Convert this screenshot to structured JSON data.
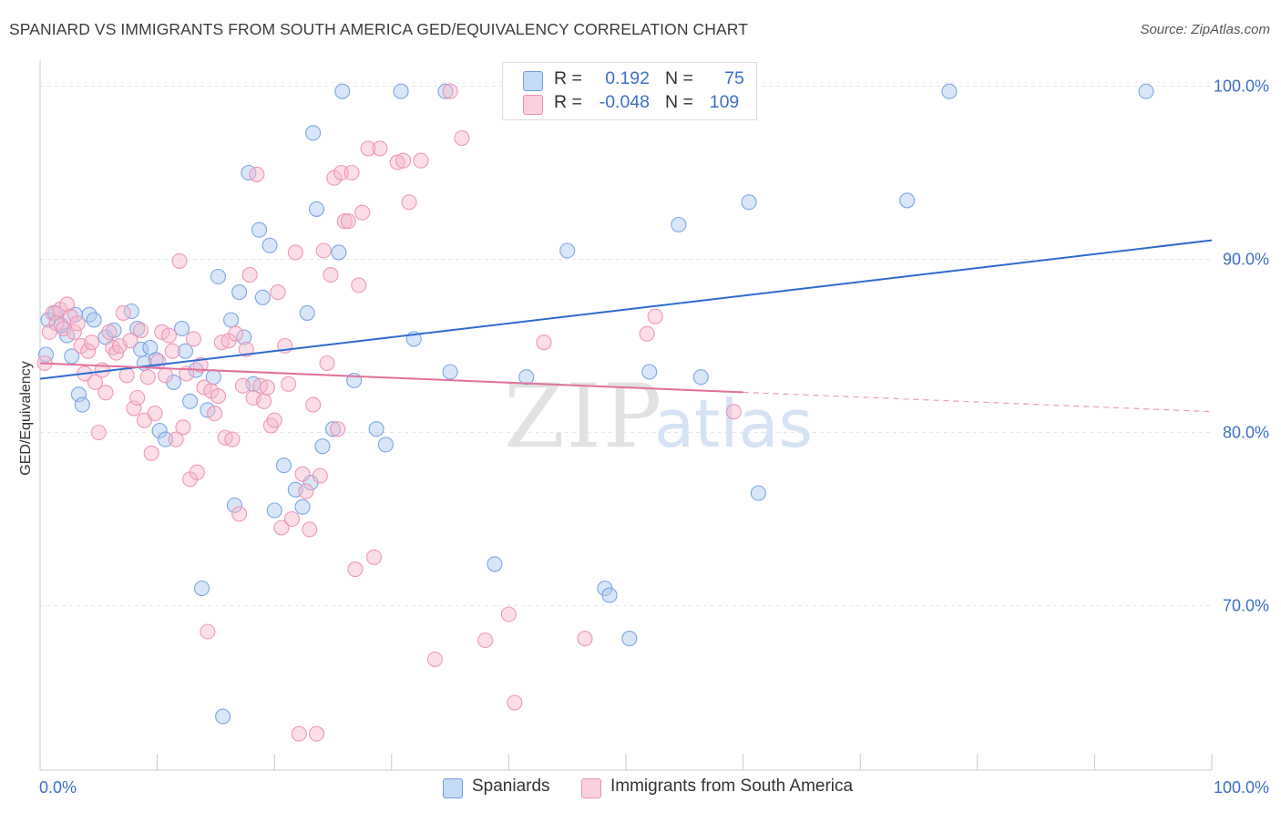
{
  "header": {
    "title": "SPANIARD VS IMMIGRANTS FROM SOUTH AMERICA GED/EQUIVALENCY CORRELATION CHART",
    "source": "Source: ZipAtlas.com"
  },
  "watermark": {
    "zip": "ZIP",
    "atlas": "atlas"
  },
  "legend": {
    "rows": [
      {
        "r_label": "R =",
        "r_value": "0.192",
        "n_label": "N =",
        "n_value": "75",
        "color": "#aac8f0"
      },
      {
        "r_label": "R =",
        "r_value": "-0.048",
        "n_label": "N =",
        "n_value": "109",
        "color": "#f7b6cb"
      }
    ]
  },
  "bottom_legend": {
    "items": [
      {
        "label": "Spaniards",
        "color": "#aac8f0"
      },
      {
        "label": "Immigrants from South America",
        "color": "#f7b6cb"
      }
    ]
  },
  "chart_data": {
    "type": "scatter",
    "title": "SPANIARD VS IMMIGRANTS FROM SOUTH AMERICA GED/EQUIVALENCY CORRELATION CHART",
    "ylabel": "GED/Equivalency",
    "xlabel": "",
    "xlim": [
      0,
      100
    ],
    "ylim": [
      60.5,
      101.5
    ],
    "x_tick_labels": [
      "0.0%",
      "100.0%"
    ],
    "y_ticks": [
      70,
      80,
      90,
      100
    ],
    "y_tick_labels": [
      "70.0%",
      "80.0%",
      "90.0%",
      "100.0%"
    ],
    "grid": true,
    "series": [
      {
        "name": "Spaniards",
        "color": "#6f9de0",
        "fill": "#aac8f0",
        "R": 0.192,
        "N": 75,
        "trend": {
          "x": [
            0,
            100
          ],
          "y": [
            83.1,
            91.1
          ],
          "dashed_from": null
        },
        "points": [
          [
            0.7,
            86.5
          ],
          [
            1.3,
            86.9
          ],
          [
            2.3,
            85.6
          ],
          [
            2.7,
            84.4
          ],
          [
            3.0,
            86.8
          ],
          [
            3.3,
            82.2
          ],
          [
            4.2,
            86.8
          ],
          [
            4.6,
            86.5
          ],
          [
            5.6,
            85.5
          ],
          [
            6.3,
            85.9
          ],
          [
            7.8,
            87.0
          ],
          [
            8.3,
            86.0
          ],
          [
            8.6,
            84.8
          ],
          [
            8.9,
            84.0
          ],
          [
            9.4,
            84.9
          ],
          [
            9.9,
            84.2
          ],
          [
            10.2,
            80.1
          ],
          [
            10.7,
            79.6
          ],
          [
            11.4,
            82.9
          ],
          [
            12.1,
            86.0
          ],
          [
            12.4,
            84.7
          ],
          [
            12.8,
            81.8
          ],
          [
            13.3,
            83.6
          ],
          [
            13.8,
            71.0
          ],
          [
            14.3,
            81.3
          ],
          [
            14.8,
            83.2
          ],
          [
            15.2,
            89.0
          ],
          [
            15.6,
            63.6
          ],
          [
            16.3,
            86.5
          ],
          [
            16.6,
            75.8
          ],
          [
            17.0,
            88.1
          ],
          [
            17.4,
            85.5
          ],
          [
            17.8,
            95.0
          ],
          [
            18.2,
            82.8
          ],
          [
            18.7,
            91.7
          ],
          [
            19.0,
            87.8
          ],
          [
            19.6,
            90.8
          ],
          [
            20.0,
            75.5
          ],
          [
            20.8,
            78.1
          ],
          [
            21.8,
            76.7
          ],
          [
            22.4,
            75.7
          ],
          [
            22.8,
            86.9
          ],
          [
            23.1,
            77.1
          ],
          [
            23.3,
            97.3
          ],
          [
            23.6,
            92.9
          ],
          [
            24.1,
            79.2
          ],
          [
            25.0,
            80.2
          ],
          [
            25.5,
            90.4
          ],
          [
            25.8,
            99.7
          ],
          [
            26.8,
            83.0
          ],
          [
            28.7,
            80.2
          ],
          [
            29.5,
            79.3
          ],
          [
            30.8,
            99.7
          ],
          [
            31.9,
            85.4
          ],
          [
            34.6,
            99.7
          ],
          [
            35.0,
            83.5
          ],
          [
            38.8,
            72.4
          ],
          [
            41.5,
            83.2
          ],
          [
            45.0,
            90.5
          ],
          [
            47.1,
            98.9
          ],
          [
            47.6,
            99.7
          ],
          [
            48.2,
            71.0
          ],
          [
            48.6,
            70.6
          ],
          [
            50.3,
            68.1
          ],
          [
            52.0,
            83.5
          ],
          [
            54.5,
            92.0
          ],
          [
            56.4,
            83.2
          ],
          [
            60.5,
            93.3
          ],
          [
            61.3,
            76.5
          ],
          [
            74.0,
            93.4
          ],
          [
            77.6,
            99.7
          ],
          [
            94.4,
            99.7
          ],
          [
            0.5,
            84.5
          ],
          [
            1.8,
            86.2
          ],
          [
            3.6,
            81.6
          ]
        ]
      },
      {
        "name": "Immigrants from South America",
        "color": "#ec8fb0",
        "fill": "#f7b6cb",
        "R": -0.048,
        "N": 109,
        "trend": {
          "x": [
            0,
            100
          ],
          "y": [
            84.0,
            81.2
          ],
          "dashed_from": 60
        },
        "points": [
          [
            0.4,
            84.0
          ],
          [
            0.8,
            85.8
          ],
          [
            1.1,
            86.9
          ],
          [
            1.4,
            86.3
          ],
          [
            1.7,
            87.1
          ],
          [
            2.0,
            86.0
          ],
          [
            2.3,
            87.4
          ],
          [
            2.6,
            86.7
          ],
          [
            2.9,
            85.8
          ],
          [
            3.2,
            86.3
          ],
          [
            3.5,
            85.0
          ],
          [
            3.8,
            83.4
          ],
          [
            4.1,
            84.7
          ],
          [
            4.4,
            85.2
          ],
          [
            4.7,
            82.9
          ],
          [
            5.0,
            80.0
          ],
          [
            5.3,
            83.6
          ],
          [
            5.6,
            82.3
          ],
          [
            5.9,
            85.8
          ],
          [
            6.2,
            84.9
          ],
          [
            6.5,
            84.6
          ],
          [
            6.8,
            85.0
          ],
          [
            7.1,
            86.9
          ],
          [
            7.4,
            83.3
          ],
          [
            7.7,
            85.3
          ],
          [
            8.0,
            81.4
          ],
          [
            8.3,
            82.0
          ],
          [
            8.6,
            85.9
          ],
          [
            8.9,
            80.7
          ],
          [
            9.2,
            83.2
          ],
          [
            9.5,
            78.8
          ],
          [
            9.8,
            81.1
          ],
          [
            10.1,
            84.1
          ],
          [
            10.4,
            85.8
          ],
          [
            10.7,
            83.3
          ],
          [
            11.0,
            85.6
          ],
          [
            11.3,
            84.7
          ],
          [
            11.6,
            79.6
          ],
          [
            11.9,
            89.9
          ],
          [
            12.2,
            80.3
          ],
          [
            12.5,
            83.4
          ],
          [
            12.8,
            77.3
          ],
          [
            13.1,
            85.4
          ],
          [
            13.4,
            77.7
          ],
          [
            13.7,
            83.9
          ],
          [
            14.0,
            82.6
          ],
          [
            14.3,
            68.5
          ],
          [
            14.6,
            82.4
          ],
          [
            14.9,
            81.1
          ],
          [
            15.2,
            82.1
          ],
          [
            15.5,
            85.2
          ],
          [
            15.8,
            79.7
          ],
          [
            16.1,
            85.3
          ],
          [
            16.4,
            79.6
          ],
          [
            16.7,
            85.7
          ],
          [
            17.0,
            75.3
          ],
          [
            17.3,
            82.7
          ],
          [
            17.6,
            84.8
          ],
          [
            17.9,
            89.1
          ],
          [
            18.2,
            82.0
          ],
          [
            18.5,
            94.9
          ],
          [
            18.8,
            82.7
          ],
          [
            19.1,
            81.8
          ],
          [
            19.4,
            82.6
          ],
          [
            19.7,
            80.4
          ],
          [
            20.0,
            80.7
          ],
          [
            20.3,
            88.1
          ],
          [
            20.6,
            74.5
          ],
          [
            20.9,
            85.0
          ],
          [
            21.2,
            82.8
          ],
          [
            21.5,
            75.0
          ],
          [
            21.8,
            90.4
          ],
          [
            22.1,
            62.6
          ],
          [
            22.4,
            77.6
          ],
          [
            22.7,
            76.6
          ],
          [
            23.0,
            74.4
          ],
          [
            23.3,
            81.6
          ],
          [
            23.6,
            62.6
          ],
          [
            23.9,
            77.5
          ],
          [
            24.2,
            90.5
          ],
          [
            24.5,
            84.0
          ],
          [
            24.8,
            89.1
          ],
          [
            25.1,
            94.7
          ],
          [
            25.4,
            80.2
          ],
          [
            25.7,
            95.0
          ],
          [
            26.0,
            92.2
          ],
          [
            26.3,
            92.2
          ],
          [
            26.6,
            95.0
          ],
          [
            26.9,
            72.1
          ],
          [
            27.2,
            88.5
          ],
          [
            27.5,
            92.7
          ],
          [
            28.0,
            96.4
          ],
          [
            28.5,
            72.8
          ],
          [
            29.0,
            96.4
          ],
          [
            30.5,
            95.6
          ],
          [
            31.0,
            95.7
          ],
          [
            31.5,
            93.3
          ],
          [
            32.5,
            95.7
          ],
          [
            33.7,
            66.9
          ],
          [
            35.0,
            99.7
          ],
          [
            36.0,
            97.0
          ],
          [
            38.0,
            68.0
          ],
          [
            40.0,
            69.5
          ],
          [
            40.5,
            64.4
          ],
          [
            43.0,
            85.2
          ],
          [
            46.5,
            68.1
          ],
          [
            51.8,
            85.7
          ],
          [
            52.5,
            86.7
          ],
          [
            59.2,
            81.2
          ]
        ]
      }
    ]
  }
}
